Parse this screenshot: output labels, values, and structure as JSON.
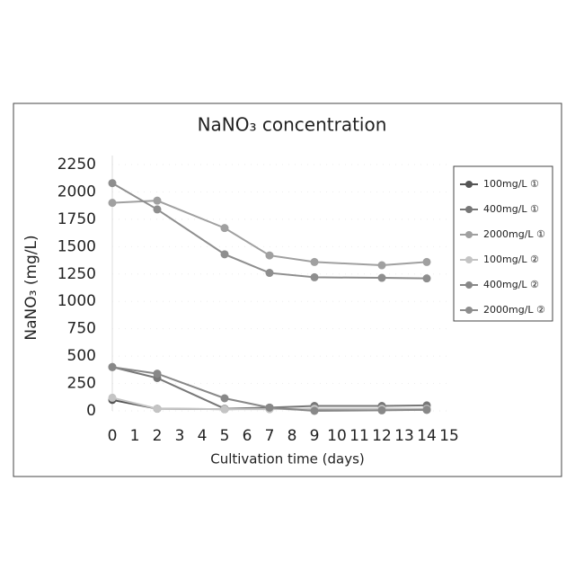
{
  "chart_data": {
    "type": "line",
    "title": "NaNO₃ concentration",
    "x_label": "Cultivation time (days)",
    "y_label": "NaNO₃ (mg/L)",
    "x": [
      0,
      2,
      5,
      7,
      9,
      12,
      14
    ],
    "series": [
      {
        "name": "100mg/L ①",
        "color": "#555555",
        "values": [
          100,
          20,
          15,
          20,
          10,
          10,
          10
        ]
      },
      {
        "name": "400mg/L ①",
        "color": "#777777",
        "values": [
          400,
          300,
          20,
          30,
          45,
          45,
          50
        ]
      },
      {
        "name": "2000mg/L ①",
        "color": "#a0a0a0",
        "values": [
          1900,
          1920,
          1670,
          1420,
          1360,
          1330,
          1360
        ]
      },
      {
        "name": "100mg/L ②",
        "color": "#c4c4c4",
        "values": [
          120,
          20,
          15,
          15,
          20,
          20,
          20
        ]
      },
      {
        "name": "400mg/L ②",
        "color": "#888888",
        "values": [
          400,
          340,
          115,
          30,
          0,
          5,
          10
        ]
      },
      {
        "name": "2000mg/L ②",
        "color": "#8e8e8e",
        "values": [
          2080,
          1840,
          1430,
          1260,
          1220,
          1215,
          1210
        ]
      }
    ],
    "xlim": [
      0,
      15
    ],
    "xticks": [
      0,
      1,
      2,
      3,
      4,
      5,
      6,
      7,
      8,
      9,
      10,
      11,
      12,
      13,
      14,
      15
    ],
    "ylim": [
      0,
      2250
    ],
    "yticks": [
      0,
      250,
      500,
      750,
      1000,
      1250,
      1500,
      1750,
      2000,
      2250
    ],
    "grid": true,
    "legend": "right"
  }
}
